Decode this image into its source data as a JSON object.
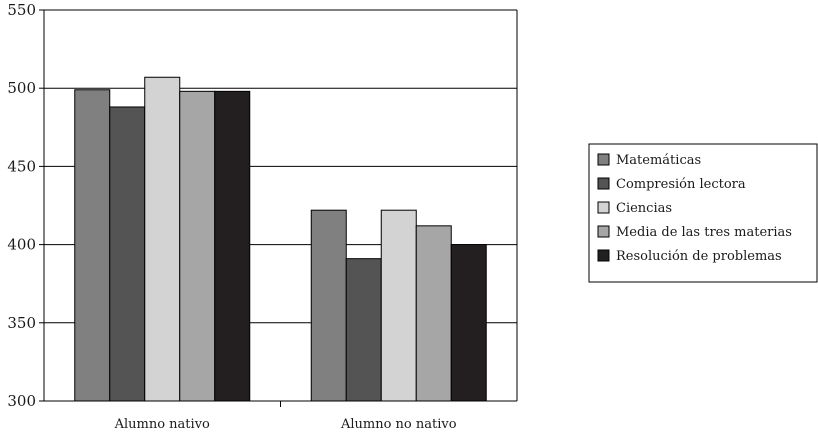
{
  "chart_data": {
    "type": "bar",
    "categories": [
      "Alumno nativo",
      "Alumno no nativo"
    ],
    "series": [
      {
        "name": "Matemáticas",
        "values": [
          499,
          422
        ],
        "color": "#808080"
      },
      {
        "name": "Compresión lectora",
        "values": [
          488,
          391
        ],
        "color": "#545454"
      },
      {
        "name": "Ciencias",
        "values": [
          507,
          422
        ],
        "color": "#d3d3d3"
      },
      {
        "name": "Media de las tres materias",
        "values": [
          498,
          412
        ],
        "color": "#a6a6a6"
      },
      {
        "name": "Resolución de problemas",
        "values": [
          498,
          400
        ],
        "color": "#231f20"
      }
    ],
    "yticks": [
      "550",
      "500",
      "450",
      "400",
      "350",
      "300"
    ],
    "ylim": [
      300,
      550
    ],
    "grid": true,
    "legend_position": "right",
    "title": "",
    "xlabel": "",
    "ylabel": ""
  }
}
